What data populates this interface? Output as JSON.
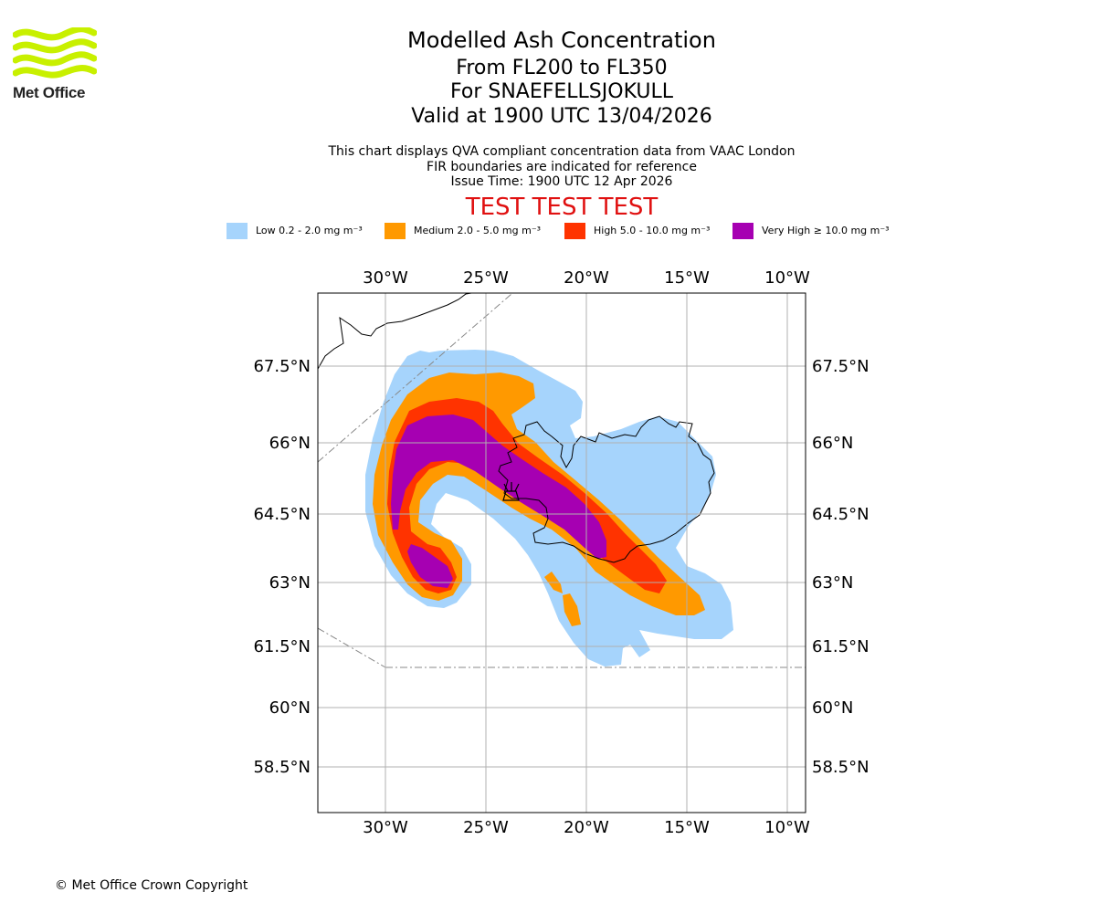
{
  "brand": {
    "name": "Met Office",
    "logo_color": "#c8f000",
    "logo_icon": "wave-logo-icon"
  },
  "header": {
    "title": "Modelled Ash Concentration",
    "level_range": "From FL200 to FL350",
    "volcano": "For SNAEFELLSJOKULL",
    "valid_time": "Valid at 1900 UTC 13/04/2026",
    "note_1": "This chart displays QVA compliant concentration data from VAAC London",
    "note_2": "FIR boundaries are indicated for reference",
    "issue_time": "Issue Time: 1900 UTC 12 Apr 2026",
    "test_banner": "TEST TEST TEST",
    "test_color": "#e01010"
  },
  "legend": [
    {
      "label": "Low 0.2 - 2.0 mg m⁻³",
      "color": "#a6d4fc"
    },
    {
      "label": "Medium 2.0 - 5.0 mg m⁻³",
      "color": "#ff9900"
    },
    {
      "label": "High 5.0 - 10.0 mg m⁻³",
      "color": "#ff3300"
    },
    {
      "label": "Very High ≥ 10.0 mg m⁻³",
      "color": "#a600b2"
    }
  ],
  "map": {
    "lon_ticks": [
      "30°W",
      "25°W",
      "20°W",
      "15°W",
      "10°W"
    ],
    "lat_ticks": [
      "67.5°N",
      "66°N",
      "64.5°N",
      "63°N",
      "61.5°N",
      "60°N",
      "58.5°N"
    ],
    "volcano_marker": "volcano-icon"
  },
  "footer": {
    "copyright": "© Met Office Crown Copyright"
  }
}
